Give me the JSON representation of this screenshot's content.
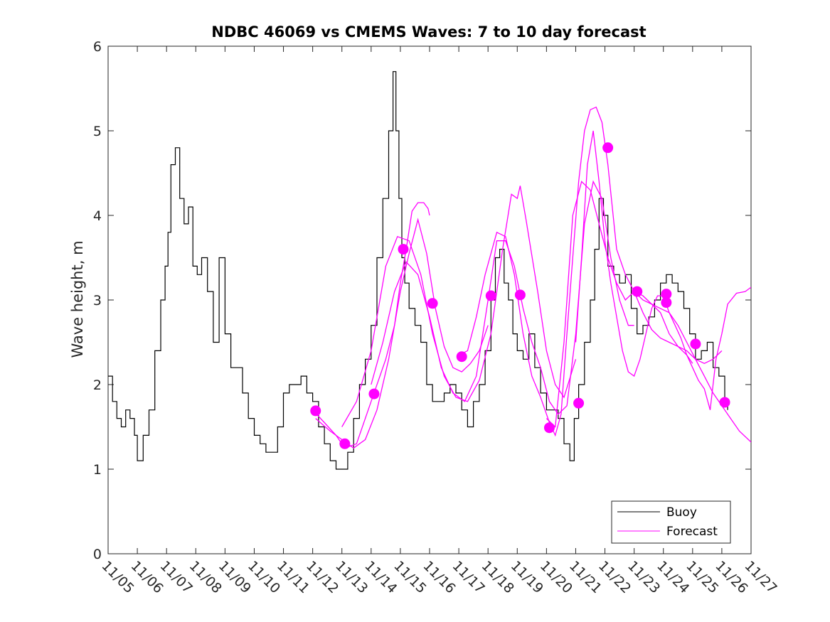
{
  "chart_data": {
    "type": "line",
    "title": "NDBC 46069 vs CMEMS Waves: 7 to 10 day forecast",
    "xlabel": "",
    "ylabel": "Wave height, m",
    "xlim": [
      0,
      22
    ],
    "ylim": [
      0,
      6
    ],
    "x_tick_values": [
      0,
      1,
      2,
      3,
      4,
      5,
      6,
      7,
      8,
      9,
      10,
      11,
      12,
      13,
      14,
      15,
      16,
      17,
      18,
      19,
      20,
      21,
      22
    ],
    "x_tick_labels": [
      "11/05",
      "11/06",
      "11/07",
      "11/08",
      "11/09",
      "11/10",
      "11/11",
      "11/12",
      "11/13",
      "11/14",
      "11/15",
      "11/16",
      "11/17",
      "11/18",
      "11/19",
      "11/20",
      "11/21",
      "11/22",
      "11/23",
      "11/24",
      "11/25",
      "11/26",
      "11/27"
    ],
    "y_tick_values": [
      0,
      1,
      2,
      3,
      4,
      5,
      6
    ],
    "y_tick_labels": [
      "0",
      "1",
      "2",
      "3",
      "4",
      "5",
      "6"
    ],
    "legend": {
      "location": "bottom-right",
      "entries": [
        "Buoy",
        "Forecast"
      ]
    },
    "colors": {
      "buoy": "#000000",
      "forecast": "#ff00ff"
    },
    "series": [
      {
        "name": "Buoy",
        "x": [
          0,
          0.15,
          0.3,
          0.45,
          0.6,
          0.75,
          0.9,
          1.0,
          1.2,
          1.4,
          1.6,
          1.8,
          1.95,
          2.05,
          2.15,
          2.3,
          2.45,
          2.6,
          2.75,
          2.9,
          3.05,
          3.2,
          3.4,
          3.6,
          3.8,
          4.0,
          4.2,
          4.4,
          4.6,
          4.8,
          5.0,
          5.2,
          5.4,
          5.6,
          5.8,
          6.0,
          6.2,
          6.4,
          6.6,
          6.8,
          7.0,
          7.2,
          7.4,
          7.6,
          7.8,
          8.0,
          8.2,
          8.4,
          8.6,
          8.8,
          9.0,
          9.2,
          9.4,
          9.6,
          9.75,
          9.85,
          9.95,
          10.05,
          10.15,
          10.3,
          10.5,
          10.7,
          10.9,
          11.1,
          11.3,
          11.5,
          11.7,
          11.9,
          12.1,
          12.3,
          12.5,
          12.7,
          12.9,
          13.1,
          13.25,
          13.4,
          13.55,
          13.7,
          13.85,
          14.0,
          14.2,
          14.4,
          14.6,
          14.8,
          15.0,
          15.2,
          15.4,
          15.6,
          15.8,
          15.95,
          16.1,
          16.3,
          16.5,
          16.65,
          16.8,
          16.95,
          17.1,
          17.3,
          17.5,
          17.7,
          17.9,
          18.1,
          18.3,
          18.5,
          18.7,
          18.9,
          19.1,
          19.3,
          19.5,
          19.7,
          19.9,
          20.1,
          20.3,
          20.5,
          20.7,
          20.9,
          21.1,
          21.2
        ],
        "y": [
          2.1,
          1.8,
          1.6,
          1.5,
          1.7,
          1.6,
          1.4,
          1.1,
          1.4,
          1.7,
          2.4,
          3.0,
          3.4,
          3.8,
          4.6,
          4.8,
          4.2,
          3.9,
          4.1,
          3.4,
          3.3,
          3.5,
          3.1,
          2.5,
          3.5,
          2.6,
          2.2,
          2.2,
          1.9,
          1.6,
          1.4,
          1.3,
          1.2,
          1.2,
          1.5,
          1.9,
          2.0,
          2.0,
          2.1,
          1.9,
          1.8,
          1.5,
          1.3,
          1.1,
          1.0,
          1.0,
          1.2,
          1.6,
          2.0,
          2.3,
          2.7,
          3.5,
          4.2,
          5.0,
          5.7,
          5.0,
          4.2,
          3.5,
          3.2,
          2.9,
          2.7,
          2.5,
          2.0,
          1.8,
          1.8,
          1.9,
          2.0,
          1.9,
          1.7,
          1.5,
          1.8,
          2.0,
          2.4,
          3.0,
          3.5,
          3.6,
          3.2,
          3.0,
          2.6,
          2.4,
          2.3,
          2.6,
          2.2,
          1.9,
          1.7,
          1.7,
          1.6,
          1.3,
          1.1,
          1.6,
          2.0,
          2.5,
          3.0,
          3.6,
          4.2,
          4.0,
          3.4,
          3.3,
          3.2,
          3.3,
          2.9,
          2.6,
          2.7,
          2.8,
          3.0,
          3.2,
          3.3,
          3.2,
          3.1,
          2.9,
          2.6,
          2.3,
          2.4,
          2.5,
          2.2,
          2.1,
          1.8,
          1.7
        ]
      },
      {
        "name": "Forecast",
        "style": "line",
        "segments": [
          {
            "x": [
              7.0,
              7.4,
              7.8,
              8.1,
              8.5,
              9.0,
              9.5,
              9.8,
              10.0,
              10.2,
              10.4,
              10.6,
              10.8,
              10.95,
              11.0
            ],
            "y": [
              1.7,
              1.55,
              1.4,
              1.25,
              1.3,
              1.8,
              2.3,
              2.7,
              3.2,
              3.6,
              4.05,
              4.15,
              4.15,
              4.08,
              4.0
            ]
          },
          {
            "x": [
              7.1,
              7.6,
              8.0,
              8.4,
              8.8,
              9.2,
              9.6,
              10.0,
              10.3,
              10.6,
              10.9,
              11.2,
              11.5,
              11.8,
              12.1,
              12.4,
              12.7,
              13.0
            ],
            "y": [
              1.6,
              1.45,
              1.35,
              1.25,
              1.35,
              1.7,
              2.3,
              3.1,
              3.55,
              3.95,
              3.55,
              2.9,
              2.45,
              2.2,
              2.15,
              2.25,
              2.4,
              2.7
            ]
          },
          {
            "x": [
              8.0,
              8.5,
              9.0,
              9.5,
              9.9,
              10.3,
              10.7,
              11.1,
              11.5,
              11.9,
              12.3,
              12.7,
              13.1,
              13.5,
              13.8,
              14.0,
              14.1,
              14.3,
              14.7,
              15.0,
              15.3,
              15.6,
              16.0
            ],
            "y": [
              1.5,
              1.8,
              2.4,
              3.4,
              3.75,
              3.7,
              3.3,
              2.6,
              2.1,
              1.85,
              1.8,
              2.05,
              2.6,
              3.6,
              4.25,
              4.2,
              4.35,
              3.95,
              3.1,
              2.4,
              2.0,
              1.85,
              2.3
            ]
          },
          {
            "x": [
              9.0,
              9.4,
              9.8,
              10.2,
              10.6,
              11.0,
              11.4,
              11.8,
              12.2,
              12.6,
              13.0,
              13.3,
              13.6,
              13.9,
              14.2,
              14.5,
              14.8,
              15.1,
              15.4,
              15.7,
              16.0,
              16.3,
              16.6,
              16.9,
              17.2,
              17.5,
              17.8,
              18.0
            ],
            "y": [
              2.0,
              2.5,
              3.1,
              3.45,
              3.3,
              2.8,
              2.2,
              1.9,
              1.8,
              2.1,
              3.0,
              3.7,
              3.7,
              3.4,
              2.9,
              2.5,
              2.2,
              1.8,
              1.65,
              1.75,
              2.6,
              3.9,
              4.4,
              4.2,
              3.5,
              3.0,
              2.7,
              2.7
            ]
          },
          {
            "x": [
              12.0,
              12.3,
              12.6,
              12.9,
              13.1,
              13.3,
              13.6,
              13.9,
              14.2,
              14.5,
              14.8,
              15.1,
              15.3,
              15.5,
              15.7,
              15.9,
              16.1,
              16.3,
              16.5,
              16.7,
              16.9,
              17.1,
              17.4,
              17.7,
              18.0,
              18.3,
              18.6,
              18.9,
              19.2,
              19.5,
              19.8,
              20.1,
              20.4,
              20.7,
              21.0,
              21.3,
              21.6,
              22.0
            ],
            "y": [
              2.35,
              2.4,
              2.8,
              3.3,
              3.55,
              3.8,
              3.75,
              3.3,
              2.6,
              2.1,
              1.85,
              1.55,
              1.4,
              1.65,
              2.6,
              3.5,
              4.4,
              5.0,
              5.25,
              5.28,
              5.1,
              4.6,
              3.6,
              3.3,
              3.1,
              3.0,
              2.95,
              2.9,
              2.85,
              2.7,
              2.5,
              2.3,
              2.1,
              1.9,
              1.75,
              1.6,
              1.45,
              1.32
            ]
          },
          {
            "x": [
              15.0,
              15.3,
              15.6,
              15.9,
              16.2,
              16.5,
              16.8,
              17.1,
              17.4,
              17.7,
              18.0,
              18.3,
              18.6,
              18.9,
              19.2,
              19.5,
              19.8,
              20.1,
              20.4,
              20.7,
              21.0
            ],
            "y": [
              1.6,
              1.5,
              2.5,
              4.0,
              4.4,
              4.3,
              3.9,
              3.5,
              3.2,
              3.0,
              3.1,
              3.05,
              2.95,
              2.85,
              2.6,
              2.45,
              2.4,
              2.3,
              2.25,
              2.3,
              2.4
            ]
          },
          {
            "x": [
              16.0,
              16.2,
              16.4,
              16.6,
              16.8,
              17.0,
              17.2,
              17.4,
              17.6,
              17.8,
              18.0,
              18.2,
              18.4,
              18.6,
              18.8,
              19.0,
              19.2,
              19.4,
              19.6,
              19.8,
              20.0,
              20.2,
              20.4,
              20.6,
              20.8,
              21.0,
              21.2,
              21.5,
              21.8,
              22.0
            ],
            "y": [
              2.5,
              3.5,
              4.6,
              5.0,
              4.4,
              3.7,
              3.2,
              2.8,
              2.4,
              2.15,
              2.1,
              2.3,
              2.6,
              2.9,
              3.05,
              3.05,
              2.85,
              2.7,
              2.55,
              2.35,
              2.2,
              2.05,
              1.95,
              1.7,
              2.3,
              2.6,
              2.95,
              3.08,
              3.1,
              3.15
            ]
          },
          {
            "x": [
              18.0,
              18.3,
              18.6,
              18.9,
              19.2,
              19.5,
              19.8,
              20.0
            ],
            "y": [
              3.1,
              2.85,
              2.65,
              2.55,
              2.5,
              2.45,
              2.35,
              2.25
            ]
          }
        ]
      },
      {
        "name": "Forecast markers",
        "style": "markers",
        "x": [
          7.1,
          8.1,
          9.1,
          10.1,
          11.1,
          12.1,
          13.1,
          14.1,
          15.1,
          16.1,
          17.1,
          18.1,
          19.1,
          19.1,
          20.1,
          21.1
        ],
        "y": [
          1.69,
          1.3,
          1.89,
          3.6,
          2.96,
          2.33,
          3.05,
          3.06,
          1.49,
          1.78,
          4.8,
          3.1,
          3.07,
          2.97,
          2.48,
          1.79
        ]
      }
    ]
  }
}
